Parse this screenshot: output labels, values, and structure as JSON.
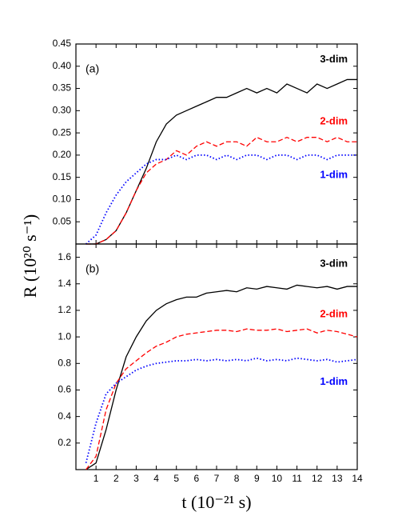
{
  "chart_data": [
    {
      "type": "line",
      "annotation": "(a)",
      "ylabel": "R (10²⁰ s⁻¹)",
      "x": [
        0.5,
        1,
        1.5,
        2,
        2.5,
        3,
        3.5,
        4,
        4.5,
        5,
        5.5,
        6,
        6.5,
        7,
        7.5,
        8,
        8.5,
        9,
        9.5,
        10,
        10.5,
        11,
        11.5,
        12,
        12.5,
        13,
        13.5,
        14
      ],
      "xlim": [
        0,
        14
      ],
      "xticks": [
        1,
        2,
        3,
        4,
        5,
        6,
        7,
        8,
        9,
        10,
        11,
        12,
        13,
        14
      ],
      "ylim": [
        0,
        0.45
      ],
      "yticks": [
        0.05,
        {
          "value": 0.1,
          "label": "0.10"
        },
        0.15,
        {
          "value": 0.2,
          "label": "0.20"
        },
        0.25,
        {
          "value": 0.3,
          "label": "0.30"
        },
        0.35,
        {
          "value": 0.4,
          "label": "0.40"
        },
        0.45
      ],
      "series": [
        {
          "name": "3-dim",
          "color": "#000000",
          "style": "solid",
          "values": [
            0,
            0,
            0.01,
            0.03,
            0.07,
            0.12,
            0.17,
            0.23,
            0.27,
            0.29,
            0.3,
            0.31,
            0.32,
            0.33,
            0.33,
            0.34,
            0.35,
            0.34,
            0.35,
            0.34,
            0.36,
            0.35,
            0.34,
            0.36,
            0.35,
            0.36,
            0.37,
            0.37
          ]
        },
        {
          "name": "2-dim",
          "color": "#ff0000",
          "style": "dashed",
          "values": [
            0,
            0,
            0.01,
            0.03,
            0.07,
            0.12,
            0.16,
            0.18,
            0.19,
            0.21,
            0.2,
            0.22,
            0.23,
            0.22,
            0.23,
            0.23,
            0.22,
            0.24,
            0.23,
            0.23,
            0.24,
            0.23,
            0.24,
            0.24,
            0.23,
            0.24,
            0.23,
            0.23
          ]
        },
        {
          "name": "1-dim",
          "color": "#0000ff",
          "style": "dotted",
          "values": [
            0,
            0.02,
            0.07,
            0.11,
            0.14,
            0.16,
            0.18,
            0.19,
            0.19,
            0.2,
            0.19,
            0.2,
            0.2,
            0.19,
            0.2,
            0.19,
            0.2,
            0.2,
            0.19,
            0.2,
            0.2,
            0.19,
            0.2,
            0.2,
            0.19,
            0.2,
            0.2,
            0.2
          ]
        }
      ]
    },
    {
      "type": "line",
      "annotation": "(b)",
      "xlabel": "t (10⁻²¹ s)",
      "x": [
        0.5,
        1,
        1.5,
        2,
        2.5,
        3,
        3.5,
        4,
        4.5,
        5,
        5.5,
        6,
        6.5,
        7,
        7.5,
        8,
        8.5,
        9,
        9.5,
        10,
        10.5,
        11,
        11.5,
        12,
        12.5,
        13,
        13.5,
        14
      ],
      "xlim": [
        0,
        14
      ],
      "xticks": [
        1,
        2,
        3,
        4,
        5,
        6,
        7,
        8,
        9,
        10,
        11,
        12,
        13,
        14
      ],
      "ylim": [
        0,
        1.7
      ],
      "yticks": [
        0.2,
        0.4,
        0.6,
        0.8,
        {
          "value": 1,
          "label": "1.0"
        },
        1.2,
        1.4,
        1.6
      ],
      "series": [
        {
          "name": "3-dim",
          "color": "#000000",
          "style": "solid",
          "values": [
            0,
            0.05,
            0.3,
            0.6,
            0.85,
            1.0,
            1.12,
            1.2,
            1.25,
            1.28,
            1.3,
            1.3,
            1.33,
            1.34,
            1.35,
            1.34,
            1.37,
            1.36,
            1.38,
            1.37,
            1.36,
            1.39,
            1.38,
            1.37,
            1.38,
            1.36,
            1.38,
            1.38
          ]
        },
        {
          "name": "2-dim",
          "color": "#ff0000",
          "style": "dashed",
          "values": [
            0,
            0.1,
            0.45,
            0.65,
            0.76,
            0.82,
            0.88,
            0.93,
            0.96,
            1.0,
            1.02,
            1.03,
            1.04,
            1.05,
            1.05,
            1.04,
            1.06,
            1.05,
            1.05,
            1.06,
            1.04,
            1.05,
            1.06,
            1.03,
            1.05,
            1.04,
            1.02,
            1.0
          ]
        },
        {
          "name": "1-dim",
          "color": "#0000ff",
          "style": "dotted",
          "values": [
            0.05,
            0.35,
            0.57,
            0.65,
            0.7,
            0.75,
            0.78,
            0.8,
            0.81,
            0.82,
            0.82,
            0.83,
            0.82,
            0.83,
            0.82,
            0.83,
            0.82,
            0.84,
            0.82,
            0.83,
            0.82,
            0.84,
            0.83,
            0.82,
            0.83,
            0.81,
            0.82,
            0.83
          ]
        }
      ]
    }
  ]
}
